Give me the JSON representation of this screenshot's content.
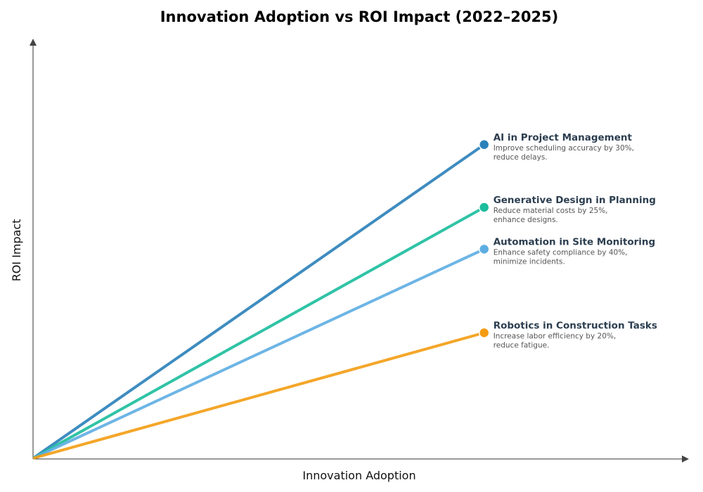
{
  "chart_data": {
    "type": "line",
    "title": "Innovation Adoption vs ROI Impact (2022–2025)",
    "xlabel": "Innovation Adoption",
    "ylabel": "ROI Impact",
    "xlim": [
      0,
      1
    ],
    "ylim": [
      0,
      1
    ],
    "grid": false,
    "series": [
      {
        "name": "AI in Project Management",
        "description_line1": "Improve scheduling accuracy by 30%,",
        "description_line2": "reduce delays.",
        "color": "#2980b9",
        "x": [
          0,
          0.69
        ],
        "y": [
          0,
          0.75
        ]
      },
      {
        "name": "Generative Design in Planning",
        "description_line1": "Reduce material costs by 25%,",
        "description_line2": "enhance designs.",
        "color": "#1abc9c",
        "x": [
          0,
          0.69
        ],
        "y": [
          0,
          0.6
        ]
      },
      {
        "name": "Automation in Site Monitoring",
        "description_line1": "Enhance safety compliance by 40%,",
        "description_line2": "minimize incidents.",
        "color": "#5dade2",
        "x": [
          0,
          0.69
        ],
        "y": [
          0,
          0.5
        ]
      },
      {
        "name": "Robotics in Construction Tasks",
        "description_line1": "Increase labor efficiency by 20%,",
        "description_line2": "reduce fatigue.",
        "color": "#f39c12",
        "x": [
          0,
          0.69
        ],
        "y": [
          0,
          0.3
        ]
      }
    ]
  }
}
